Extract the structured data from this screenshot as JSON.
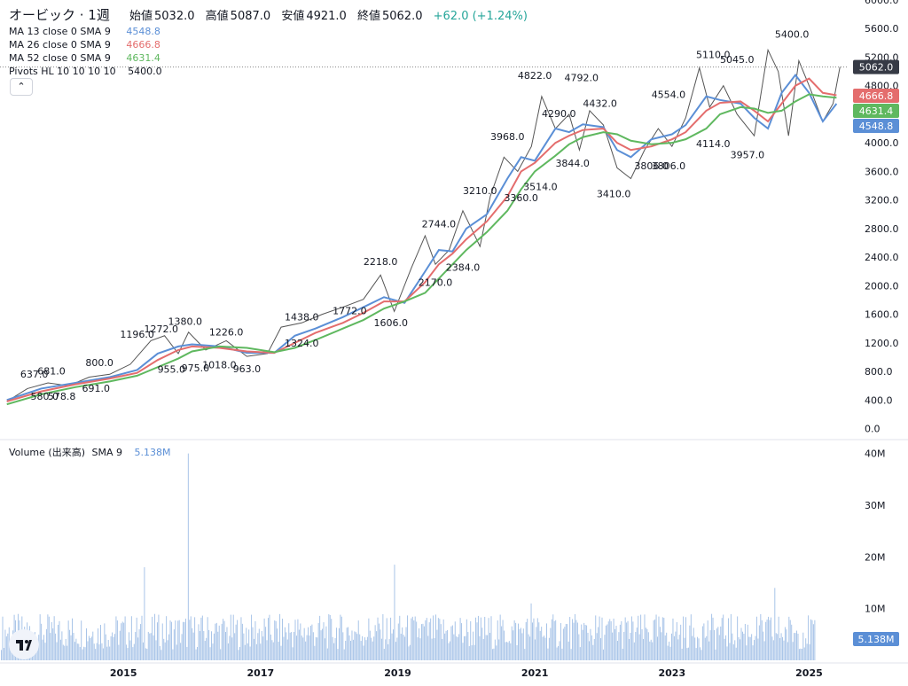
{
  "header": {
    "title": "オービック · 1週",
    "open_label": "始値",
    "open": "5032.0",
    "high_label": "高値",
    "high": "5087.0",
    "low_label": "安値",
    "low": "4921.0",
    "close_label": "終値",
    "close": "5062.0",
    "change": "+62.0 (+1.24%)"
  },
  "legend": {
    "ma13": {
      "label": "MA 13 close 0 SMA 9",
      "value": "4548.8",
      "color": "#5b8fd6"
    },
    "ma26": {
      "label": "MA 26 close 0 SMA 9",
      "value": "4666.8",
      "color": "#e46d6d"
    },
    "ma52": {
      "label": "MA 52 close 0 SMA 9",
      "value": "4631.4",
      "color": "#5fb85f"
    },
    "pivots": {
      "label": "Pivots HL 10 10 10 10",
      "value": "5400.0"
    },
    "volume": {
      "label": "Volume (出来高)",
      "sma_label": "SMA 9",
      "value": "5.138M"
    },
    "collapse_icon": "chevron-up-icon"
  },
  "chart_data": [
    {
      "type": "line",
      "title": "オービック · 1週",
      "price_axis_ticks": [
        "6000.0",
        "5600.0",
        "5200.0",
        "4800.0",
        "4400.0",
        "4000.0",
        "3600.0",
        "3200.0",
        "2800.0",
        "2400.0",
        "2000.0",
        "1600.0",
        "1200.0",
        "800.0",
        "400.0",
        "0.0"
      ],
      "ylim": [
        -80,
        6000
      ],
      "x_ticks": [
        "2015",
        "2017",
        "2019",
        "2021",
        "2023",
        "2025"
      ],
      "x_tick_years": [
        2015,
        2017,
        2019,
        2021,
        2023,
        2025
      ],
      "xlim": [
        2013.2,
        2025.55
      ],
      "last_price_label": "5062.0",
      "last_price": 5062,
      "ma_badges": [
        {
          "label": "4666.8",
          "value": 4666.8,
          "color": "#e46d6d"
        },
        {
          "label": "4631.4",
          "value": 4631.4,
          "color": "#5fb85f"
        },
        {
          "label": "4548.8",
          "value": 4548.8,
          "color": "#5b8fd6"
        }
      ],
      "series": [
        {
          "name": "MA 13",
          "color": "#5b8fd6",
          "x": [
            2013.3,
            2013.8,
            2014.3,
            2014.8,
            2015.2,
            2015.5,
            2015.8,
            2016.0,
            2016.4,
            2016.8,
            2017.2,
            2017.5,
            2017.8,
            2018.2,
            2018.5,
            2018.8,
            2019.1,
            2019.4,
            2019.6,
            2019.8,
            2020.0,
            2020.3,
            2020.6,
            2020.8,
            2021.0,
            2021.3,
            2021.5,
            2021.7,
            2022.0,
            2022.2,
            2022.4,
            2022.7,
            2023.0,
            2023.2,
            2023.5,
            2023.7,
            2024.0,
            2024.2,
            2024.4,
            2024.6,
            2024.8,
            2025.0,
            2025.2,
            2025.4
          ],
          "y": [
            400,
            560,
            640,
            720,
            820,
            1050,
            1150,
            1180,
            1150,
            1060,
            1060,
            1300,
            1400,
            1560,
            1700,
            1840,
            1760,
            2200,
            2500,
            2480,
            2800,
            3000,
            3500,
            3800,
            3750,
            4200,
            4150,
            4260,
            4220,
            3900,
            3800,
            4050,
            4120,
            4250,
            4650,
            4600,
            4550,
            4350,
            4200,
            4700,
            4950,
            4700,
            4300,
            4548.8
          ]
        },
        {
          "name": "MA 26",
          "color": "#e46d6d",
          "x": [
            2013.3,
            2013.8,
            2014.3,
            2014.8,
            2015.2,
            2015.5,
            2015.8,
            2016.0,
            2016.4,
            2016.8,
            2017.2,
            2017.5,
            2017.8,
            2018.2,
            2018.5,
            2018.8,
            2019.1,
            2019.4,
            2019.6,
            2019.8,
            2020.0,
            2020.3,
            2020.6,
            2020.8,
            2021.0,
            2021.3,
            2021.5,
            2021.7,
            2022.0,
            2022.2,
            2022.4,
            2022.7,
            2023.0,
            2023.2,
            2023.5,
            2023.7,
            2024.0,
            2024.2,
            2024.4,
            2024.6,
            2024.8,
            2025.0,
            2025.2,
            2025.4
          ],
          "y": [
            380,
            520,
            620,
            700,
            780,
            960,
            1100,
            1150,
            1130,
            1080,
            1060,
            1200,
            1340,
            1480,
            1620,
            1780,
            1780,
            2050,
            2300,
            2450,
            2650,
            2900,
            3250,
            3600,
            3720,
            4000,
            4100,
            4180,
            4200,
            4000,
            3900,
            3950,
            4050,
            4150,
            4450,
            4560,
            4580,
            4450,
            4300,
            4550,
            4800,
            4900,
            4700,
            4666.8
          ]
        },
        {
          "name": "MA 52",
          "color": "#5fb85f",
          "x": [
            2013.3,
            2013.8,
            2014.3,
            2014.8,
            2015.2,
            2015.5,
            2015.8,
            2016.0,
            2016.4,
            2016.8,
            2017.2,
            2017.5,
            2017.8,
            2018.2,
            2018.5,
            2018.8,
            2019.1,
            2019.4,
            2019.6,
            2019.8,
            2020.0,
            2020.3,
            2020.6,
            2020.8,
            2021.0,
            2021.3,
            2021.5,
            2021.7,
            2022.0,
            2022.2,
            2022.4,
            2022.7,
            2023.0,
            2023.2,
            2023.5,
            2023.7,
            2024.0,
            2024.2,
            2024.4,
            2024.6,
            2024.8,
            2025.0,
            2025.2,
            2025.4
          ],
          "y": [
            340,
            480,
            580,
            660,
            740,
            860,
            980,
            1080,
            1150,
            1130,
            1070,
            1130,
            1240,
            1400,
            1520,
            1680,
            1780,
            1900,
            2100,
            2300,
            2500,
            2750,
            3050,
            3350,
            3600,
            3820,
            3980,
            4080,
            4150,
            4120,
            4030,
            3980,
            4000,
            4050,
            4200,
            4400,
            4500,
            4480,
            4420,
            4450,
            4580,
            4680,
            4650,
            4631.4
          ]
        },
        {
          "name": "Close",
          "color": "#555555",
          "x": [
            2013.3,
            2013.6,
            2013.9,
            2014.2,
            2014.5,
            2014.8,
            2015.1,
            2015.4,
            2015.6,
            2015.8,
            2015.95,
            2016.2,
            2016.5,
            2016.8,
            2017.1,
            2017.3,
            2017.6,
            2017.9,
            2018.2,
            2018.5,
            2018.75,
            2018.95,
            2019.2,
            2019.4,
            2019.55,
            2019.75,
            2019.95,
            2020.2,
            2020.35,
            2020.55,
            2020.75,
            2020.95,
            2021.1,
            2021.3,
            2021.5,
            2021.65,
            2021.8,
            2022.0,
            2022.2,
            2022.4,
            2022.6,
            2022.8,
            2023.0,
            2023.2,
            2023.4,
            2023.55,
            2023.75,
            2023.95,
            2024.2,
            2024.4,
            2024.55,
            2024.7,
            2024.85,
            2025.0,
            2025.2,
            2025.35,
            2025.45
          ],
          "y": [
            380,
            560,
            640,
            600,
            720,
            760,
            900,
            1230,
            1300,
            1050,
            1350,
            1100,
            1230,
            1010,
            1050,
            1420,
            1480,
            1600,
            1700,
            1810,
            2150,
            1640,
            2250,
            2700,
            2300,
            2500,
            3050,
            2550,
            3250,
            3800,
            3600,
            3950,
            4650,
            4200,
            4400,
            3900,
            4450,
            4250,
            3650,
            3500,
            3900,
            4200,
            3950,
            4350,
            5050,
            4500,
            4800,
            4400,
            4100,
            5300,
            5000,
            4100,
            5150,
            4800,
            4300,
            4550,
            5062
          ]
        }
      ],
      "pivots": [
        {
          "label": "5400.0",
          "x": 2024.75,
          "y": 5400,
          "type": "high"
        },
        {
          "label": "5110.0",
          "x": 2023.6,
          "y": 5110,
          "type": "high"
        },
        {
          "label": "5045.0",
          "x": 2023.95,
          "y": 5045,
          "type": "high"
        },
        {
          "label": "4822.0",
          "x": 2021.0,
          "y": 4822,
          "type": "high"
        },
        {
          "label": "4792.0",
          "x": 2021.68,
          "y": 4792,
          "type": "high"
        },
        {
          "label": "4554.0",
          "x": 2022.95,
          "y": 4554,
          "type": "high"
        },
        {
          "label": "4432.0",
          "x": 2021.95,
          "y": 4432,
          "type": "high"
        },
        {
          "label": "4290.0",
          "x": 2021.35,
          "y": 4290,
          "type": "high"
        },
        {
          "label": "3968.0",
          "x": 2020.6,
          "y": 3968,
          "type": "high"
        },
        {
          "label": "3210.0",
          "x": 2020.2,
          "y": 3210,
          "type": "high"
        },
        {
          "label": "2744.0",
          "x": 2019.6,
          "y": 2744,
          "type": "high"
        },
        {
          "label": "2218.0",
          "x": 2018.75,
          "y": 2218,
          "type": "high"
        },
        {
          "label": "1438.0",
          "x": 2017.6,
          "y": 1438,
          "type": "high"
        },
        {
          "label": "1380.0",
          "x": 2015.9,
          "y": 1380,
          "type": "high"
        },
        {
          "label": "1272.0",
          "x": 2015.55,
          "y": 1272,
          "type": "high"
        },
        {
          "label": "1196.0",
          "x": 2015.2,
          "y": 1196,
          "type": "high"
        },
        {
          "label": "1226.0",
          "x": 2016.5,
          "y": 1226,
          "type": "high"
        },
        {
          "label": "800.0",
          "x": 2014.65,
          "y": 800,
          "type": "high"
        },
        {
          "label": "681.0",
          "x": 2013.95,
          "y": 681,
          "type": "high"
        },
        {
          "label": "637.0",
          "x": 2013.7,
          "y": 637,
          "type": "high"
        },
        {
          "label": "3844.0",
          "x": 2021.55,
          "y": 3844,
          "type": "low"
        },
        {
          "label": "3514.0",
          "x": 2021.08,
          "y": 3514,
          "type": "low"
        },
        {
          "label": "3360.0",
          "x": 2020.8,
          "y": 3360,
          "type": "low"
        },
        {
          "label": "3410.0",
          "x": 2022.15,
          "y": 3410,
          "type": "low"
        },
        {
          "label": "3806.0",
          "x": 2022.7,
          "y": 3806,
          "type": "low"
        },
        {
          "label": "3806.0",
          "x": 2022.95,
          "y": 3806,
          "type": "low"
        },
        {
          "label": "4114.0",
          "x": 2023.6,
          "y": 4114,
          "type": "low"
        },
        {
          "label": "3957.0",
          "x": 2024.1,
          "y": 3957,
          "type": "low"
        },
        {
          "label": "2384.0",
          "x": 2019.95,
          "y": 2384,
          "type": "low"
        },
        {
          "label": "2170.0",
          "x": 2019.55,
          "y": 2170,
          "type": "low"
        },
        {
          "label": "1772.0",
          "x": 2018.3,
          "y": 1772,
          "type": "low"
        },
        {
          "label": "1606.0",
          "x": 2018.9,
          "y": 1606,
          "type": "low"
        },
        {
          "label": "1324.0",
          "x": 2017.6,
          "y": 1324,
          "type": "low"
        },
        {
          "label": "955.0",
          "x": 2015.7,
          "y": 955,
          "type": "low"
        },
        {
          "label": "975.0",
          "x": 2016.05,
          "y": 975,
          "type": "low"
        },
        {
          "label": "1018.0",
          "x": 2016.4,
          "y": 1018,
          "type": "low"
        },
        {
          "label": "963.0",
          "x": 2016.8,
          "y": 963,
          "type": "low"
        },
        {
          "label": "691.0",
          "x": 2014.6,
          "y": 691,
          "type": "low"
        },
        {
          "label": "580.0",
          "x": 2013.85,
          "y": 580,
          "type": "low"
        },
        {
          "label": "578.8",
          "x": 2014.1,
          "y": 578.8,
          "type": "low"
        }
      ]
    },
    {
      "type": "bar",
      "title": "Volume (出来高)",
      "volume_axis_ticks": [
        "40M",
        "30M",
        "20M",
        "10M"
      ],
      "ylim": [
        0,
        42
      ],
      "unit": "M",
      "last_volume_label": "5.138M",
      "spikes": [
        {
          "x": 2015.3,
          "value": 18
        },
        {
          "x": 2015.95,
          "value": 40
        },
        {
          "x": 2018.95,
          "value": 18.5
        },
        {
          "x": 2024.5,
          "value": 14
        },
        {
          "x": 2020.95,
          "value": 11
        }
      ],
      "typical_value_range": [
        2,
        9
      ]
    }
  ]
}
